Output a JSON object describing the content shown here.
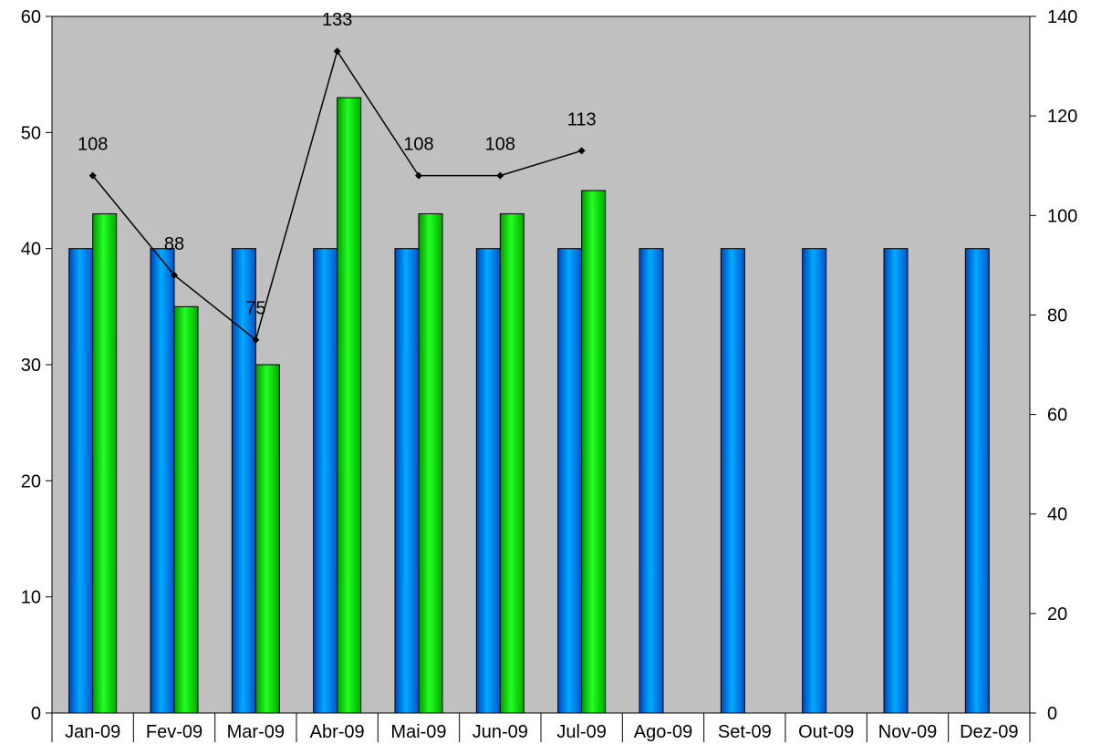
{
  "chart_data": {
    "type": "bar",
    "categories": [
      "Jan-09",
      "Fev-09",
      "Mar-09",
      "Abr-09",
      "Mai-09",
      "Jun-09",
      "Jul-09",
      "Ago-09",
      "Set-09",
      "Out-09",
      "Nov-09",
      "Dez-09"
    ],
    "series": [
      {
        "type": "bar",
        "axis": "left",
        "color": "#0099ff",
        "values": [
          40,
          40,
          40,
          40,
          40,
          40,
          40,
          40,
          40,
          40,
          40,
          40
        ]
      },
      {
        "type": "bar",
        "axis": "left",
        "color": "#00dd00",
        "values": [
          43,
          35,
          30,
          53,
          43,
          43,
          45,
          null,
          null,
          null,
          null,
          null
        ]
      },
      {
        "type": "line",
        "axis": "right",
        "color": "#000000",
        "values": [
          108,
          88,
          75,
          133,
          108,
          108,
          113,
          null,
          null,
          null,
          null,
          null
        ],
        "data_labels": [
          "108",
          "88",
          "75",
          "133",
          "108",
          "108",
          "113"
        ]
      }
    ],
    "left_axis": {
      "ylim": [
        0,
        60
      ],
      "ticks": [
        "0",
        "10",
        "20",
        "30",
        "40",
        "50",
        "60"
      ]
    },
    "right_axis": {
      "ylim": [
        0,
        140
      ],
      "ticks": [
        "0",
        "20",
        "40",
        "60",
        "80",
        "100",
        "120",
        "140"
      ]
    },
    "plot_background": "#c0c0c0",
    "grid": false,
    "legend": "none"
  }
}
